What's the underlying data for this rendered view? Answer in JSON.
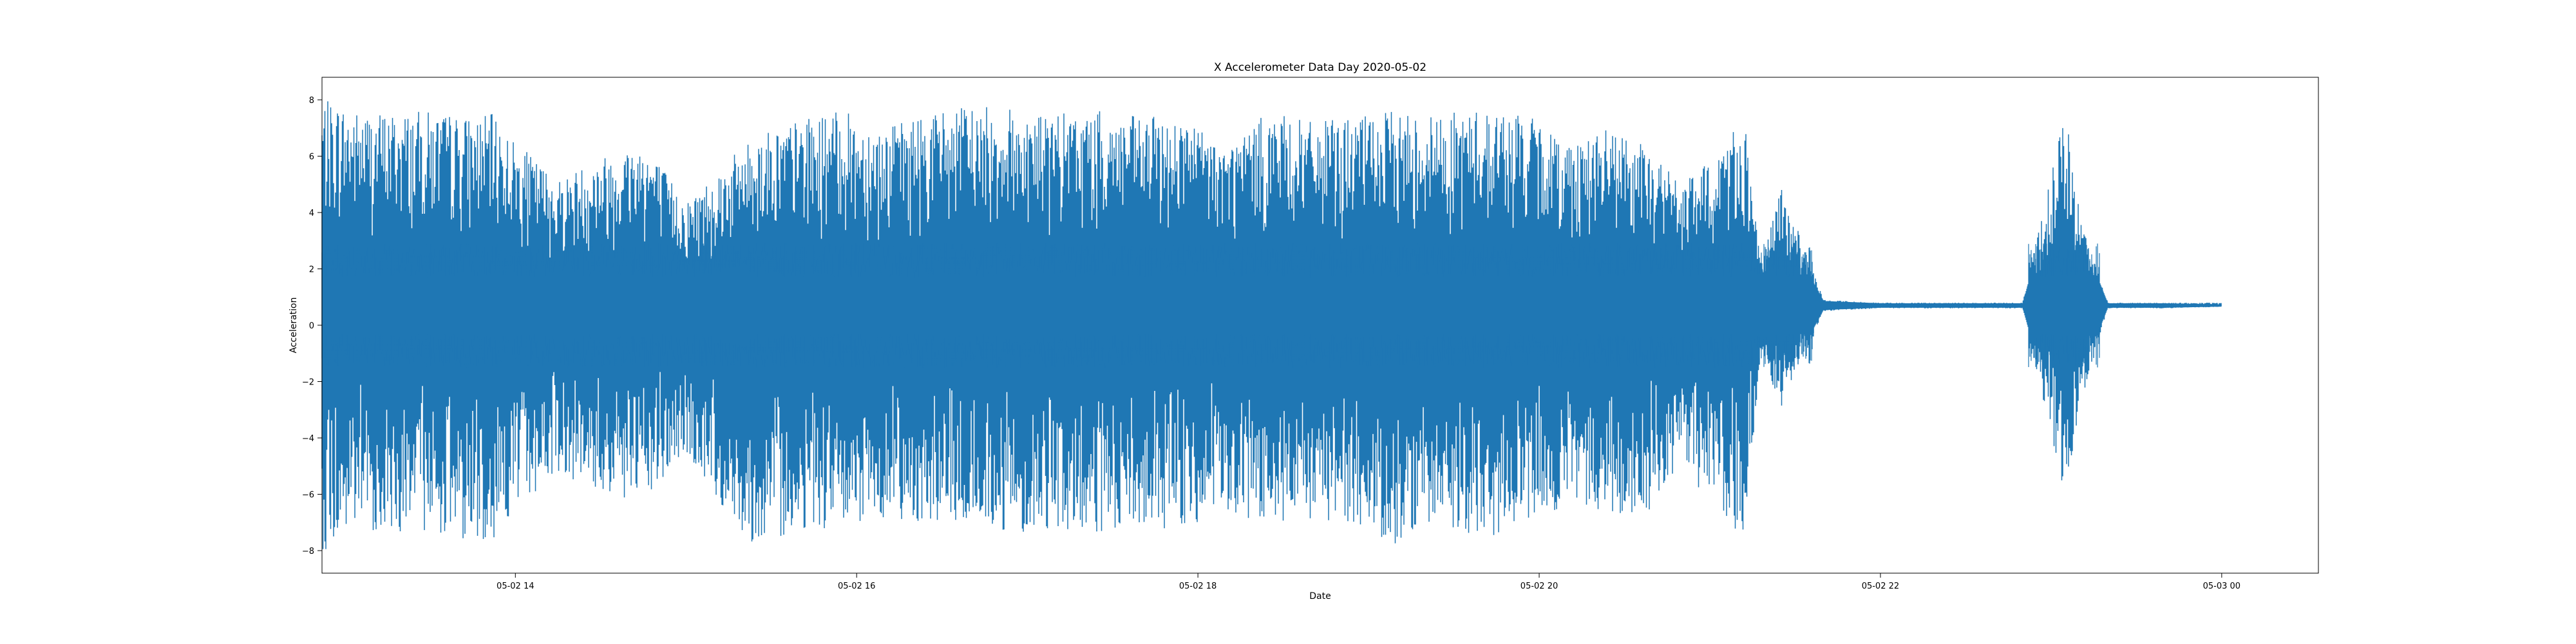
{
  "chart_data": {
    "type": "line",
    "title": "X Accelerometer Data Day 2020-05-02",
    "xlabel": "Date",
    "ylabel": "Acceleration",
    "x_ticks": [
      "05-02 14",
      "05-02 16",
      "05-02 18",
      "05-02 20",
      "05-02 22",
      "05-03 00"
    ],
    "y_ticks": [
      8,
      6,
      4,
      2,
      0,
      -2,
      -4,
      -6,
      -8
    ],
    "xlim": [
      "2020-05-02 12:52",
      "2020-05-03 00:34"
    ],
    "ylim": [
      -8.8,
      8.8
    ],
    "grid": false,
    "legend": "none",
    "line_color": "#1f77b4",
    "series": [
      {
        "x": [
          "2020-05-02 12:52",
          "2020-05-02 12:58",
          "2020-05-02 13:05",
          "2020-05-02 13:15",
          "2020-05-02 13:30",
          "2020-05-02 13:45",
          "2020-05-02 13:52",
          "2020-05-02 14:00",
          "2020-05-02 14:15",
          "2020-05-02 14:30",
          "2020-05-02 14:45",
          "2020-05-02 15:00",
          "2020-05-02 15:12",
          "2020-05-02 15:25",
          "2020-05-02 15:40",
          "2020-05-02 15:55",
          "2020-05-02 16:10",
          "2020-05-02 16:25",
          "2020-05-02 16:40",
          "2020-05-02 16:55",
          "2020-05-02 17:10",
          "2020-05-02 17:25",
          "2020-05-02 17:40",
          "2020-05-02 17:55",
          "2020-05-02 18:10",
          "2020-05-02 18:25",
          "2020-05-02 18:40",
          "2020-05-02 18:55",
          "2020-05-02 19:10",
          "2020-05-02 19:25",
          "2020-05-02 19:40",
          "2020-05-02 19:55",
          "2020-05-02 20:10",
          "2020-05-02 20:25",
          "2020-05-02 20:40",
          "2020-05-02 20:50",
          "2020-05-02 21:00",
          "2020-05-02 21:12",
          "2020-05-02 21:18",
          "2020-05-02 21:25",
          "2020-05-02 21:40",
          "2020-05-02 22:00",
          "2020-05-02 22:30",
          "2020-05-02 22:50",
          "2020-05-02 23:05",
          "2020-05-02 23:10",
          "2020-05-02 23:20",
          "2020-05-02 23:40",
          "2020-05-03 00:00"
        ],
        "high": [
          8.0,
          7.9,
          7.6,
          7.6,
          7.6,
          7.4,
          7.5,
          6.5,
          5.2,
          6.0,
          6.6,
          4.4,
          5.6,
          6.8,
          7.3,
          7.6,
          7.0,
          7.6,
          7.8,
          7.7,
          7.5,
          7.6,
          7.4,
          7.4,
          6.4,
          7.6,
          7.2,
          7.4,
          7.6,
          7.5,
          7.7,
          7.5,
          6.6,
          7.0,
          6.2,
          5.0,
          5.8,
          7.6,
          2.0,
          5.0,
          0.9,
          0.8,
          0.8,
          0.8,
          7.6,
          4.0,
          0.8,
          0.8,
          0.8
        ],
        "low": [
          -8.0,
          -7.8,
          -7.2,
          -7.4,
          -7.3,
          -7.7,
          -7.6,
          -6.6,
          -5.2,
          -6.0,
          -6.4,
          -4.6,
          -6.4,
          -7.9,
          -7.2,
          -7.3,
          -6.8,
          -7.0,
          -7.1,
          -7.4,
          -7.2,
          -7.6,
          -7.3,
          -7.2,
          -6.8,
          -7.3,
          -7.1,
          -7.0,
          -7.8,
          -7.0,
          -7.6,
          -7.1,
          -6.4,
          -6.7,
          -6.6,
          -5.0,
          -6.4,
          -7.6,
          -1.0,
          -3.0,
          0.5,
          0.6,
          0.6,
          0.6,
          -6.2,
          -3.0,
          0.6,
          0.6,
          0.65
        ]
      }
    ]
  }
}
